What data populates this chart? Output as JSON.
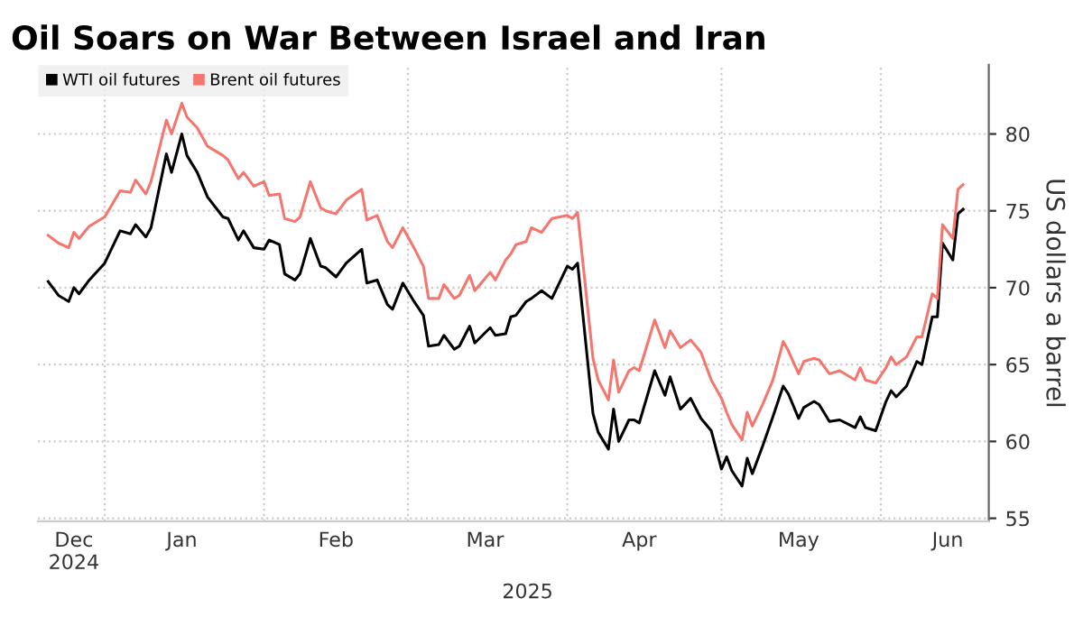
{
  "chart_data": {
    "type": "line",
    "title": "Oil Soars on War Between Israel and Iran",
    "ylabel": "US dollars a barrel",
    "x": [
      "2024-12-21",
      "2024-12-23",
      "2024-12-25",
      "2024-12-26",
      "2024-12-27",
      "2024-12-29",
      "2025-01-01",
      "2025-01-04",
      "2025-01-06",
      "2025-01-07",
      "2025-01-09",
      "2025-01-10",
      "2025-01-13",
      "2025-01-14",
      "2025-01-16",
      "2025-01-17",
      "2025-01-19",
      "2025-01-21",
      "2025-01-24",
      "2025-01-25",
      "2025-01-27",
      "2025-01-28",
      "2025-01-30",
      "2025-02-01",
      "2025-02-02",
      "2025-02-04",
      "2025-02-05",
      "2025-02-07",
      "2025-02-08",
      "2025-02-10",
      "2025-02-12",
      "2025-02-13",
      "2025-02-15",
      "2025-02-17",
      "2025-02-20",
      "2025-02-21",
      "2025-02-23",
      "2025-02-25",
      "2025-02-26",
      "2025-02-28",
      "2025-03-02",
      "2025-03-04",
      "2025-03-05",
      "2025-03-07",
      "2025-03-08",
      "2025-03-10",
      "2025-03-11",
      "2025-03-13",
      "2025-03-14",
      "2025-03-17",
      "2025-03-18",
      "2025-03-20",
      "2025-03-21",
      "2025-03-22",
      "2025-03-24",
      "2025-03-25",
      "2025-03-27",
      "2025-03-29",
      "2025-04-01",
      "2025-04-02",
      "2025-04-03",
      "2025-04-06",
      "2025-04-07",
      "2025-04-09",
      "2025-04-10",
      "2025-04-11",
      "2025-04-13",
      "2025-04-14",
      "2025-04-15",
      "2025-04-18",
      "2025-04-20",
      "2025-04-21",
      "2025-04-23",
      "2025-04-25",
      "2025-04-27",
      "2025-04-29",
      "2025-05-01",
      "2025-05-02",
      "2025-05-03",
      "2025-05-05",
      "2025-05-06",
      "2025-05-07",
      "2025-05-09",
      "2025-05-11",
      "2025-05-13",
      "2025-05-14",
      "2025-05-16",
      "2025-05-17",
      "2025-05-19",
      "2025-05-20",
      "2025-05-22",
      "2025-05-24",
      "2025-05-27",
      "2025-05-28",
      "2025-05-29",
      "2025-05-31",
      "2025-06-02",
      "2025-06-03",
      "2025-06-04",
      "2025-06-06",
      "2025-06-08",
      "2025-06-09",
      "2025-06-11",
      "2025-06-12",
      "2025-06-13",
      "2025-06-15",
      "2025-06-16",
      "2025-06-17"
    ],
    "series": [
      {
        "name": "WTI oil futures",
        "color": "#000000",
        "values": [
          70.4,
          69.5,
          69.1,
          70.0,
          69.6,
          70.5,
          71.6,
          73.7,
          73.5,
          74.1,
          73.3,
          73.9,
          78.7,
          77.5,
          80.0,
          78.6,
          77.5,
          75.9,
          74.6,
          74.5,
          73.1,
          73.7,
          72.6,
          72.5,
          73.1,
          72.8,
          70.9,
          70.5,
          70.9,
          73.2,
          71.4,
          71.3,
          70.7,
          71.6,
          72.5,
          70.3,
          70.5,
          68.9,
          68.6,
          70.3,
          69.2,
          68.2,
          66.2,
          66.3,
          66.9,
          66.0,
          66.2,
          67.5,
          66.4,
          67.4,
          66.9,
          67.0,
          68.1,
          68.2,
          69.1,
          69.3,
          69.8,
          69.3,
          71.4,
          71.2,
          71.6,
          61.8,
          60.6,
          59.5,
          62.1,
          60.0,
          61.4,
          61.4,
          61.2,
          64.6,
          63.0,
          64.2,
          62.1,
          62.8,
          61.5,
          60.7,
          58.2,
          59.0,
          58.1,
          57.1,
          58.9,
          57.9,
          59.7,
          61.6,
          63.6,
          63.1,
          61.5,
          62.2,
          62.6,
          62.4,
          61.3,
          61.4,
          60.9,
          61.6,
          60.9,
          60.7,
          62.6,
          63.3,
          62.9,
          63.6,
          65.2,
          65.0,
          68.1,
          68.1,
          72.9,
          71.8,
          74.8,
          75.1
        ]
      },
      {
        "name": "Brent oil futures",
        "color": "#f4766f",
        "values": [
          73.4,
          72.9,
          72.6,
          73.6,
          73.2,
          74.0,
          74.6,
          76.3,
          76.2,
          77.0,
          76.1,
          76.9,
          80.9,
          80.0,
          82.0,
          81.1,
          80.4,
          79.2,
          78.6,
          78.3,
          77.1,
          77.5,
          76.6,
          76.9,
          76.0,
          76.1,
          74.5,
          74.3,
          74.6,
          76.9,
          75.2,
          75.0,
          74.8,
          75.7,
          76.4,
          74.4,
          74.7,
          73.0,
          72.6,
          73.9,
          72.7,
          71.4,
          69.3,
          69.3,
          70.2,
          69.3,
          69.5,
          70.8,
          69.8,
          71.0,
          70.5,
          71.8,
          72.2,
          72.8,
          73.0,
          73.9,
          73.6,
          74.5,
          74.7,
          74.5,
          74.9,
          65.4,
          64.0,
          62.7,
          65.3,
          63.2,
          64.6,
          64.8,
          64.6,
          67.9,
          66.1,
          67.2,
          66.1,
          66.6,
          65.8,
          64.0,
          62.8,
          61.9,
          61.1,
          60.1,
          61.9,
          61.0,
          62.4,
          64.0,
          66.5,
          65.9,
          64.4,
          65.2,
          65.4,
          65.3,
          64.4,
          64.6,
          64.0,
          64.8,
          64.0,
          63.8,
          64.8,
          65.5,
          65.0,
          65.5,
          66.8,
          66.8,
          69.6,
          69.3,
          74.1,
          73.2,
          76.4,
          76.7
        ]
      }
    ],
    "xlim": [
      "2024-12-19",
      "2025-06-22"
    ],
    "xticks": [
      {
        "value": "2025-01-01",
        "label": null
      },
      {
        "value": "2025-02-01",
        "label": null
      },
      {
        "value": "2025-03-01",
        "label": null
      },
      {
        "value": "2025-04-01",
        "label": null
      },
      {
        "value": "2025-05-01",
        "label": null
      },
      {
        "value": "2025-06-01",
        "label": null
      },
      {
        "value": "2024-12-26",
        "label": "Dec\n2024"
      },
      {
        "value": "2025-01-16",
        "label": "Jan"
      },
      {
        "value": "2025-02-15",
        "label": "Feb"
      },
      {
        "value": "2025-03-16",
        "label": "Mar"
      },
      {
        "value": "2025-04-15",
        "label": "Apr"
      },
      {
        "value": "2025-05-16",
        "label": "May"
      },
      {
        "value": "2025-06-14",
        "label": "Jun"
      }
    ],
    "ylim": [
      54.8,
      84.5
    ],
    "yticks": [
      55,
      60,
      65,
      70,
      75,
      80
    ],
    "annotations": [
      "2025"
    ],
    "grid": true,
    "legend": "top left",
    "line_style": "solid",
    "marker": "none"
  }
}
